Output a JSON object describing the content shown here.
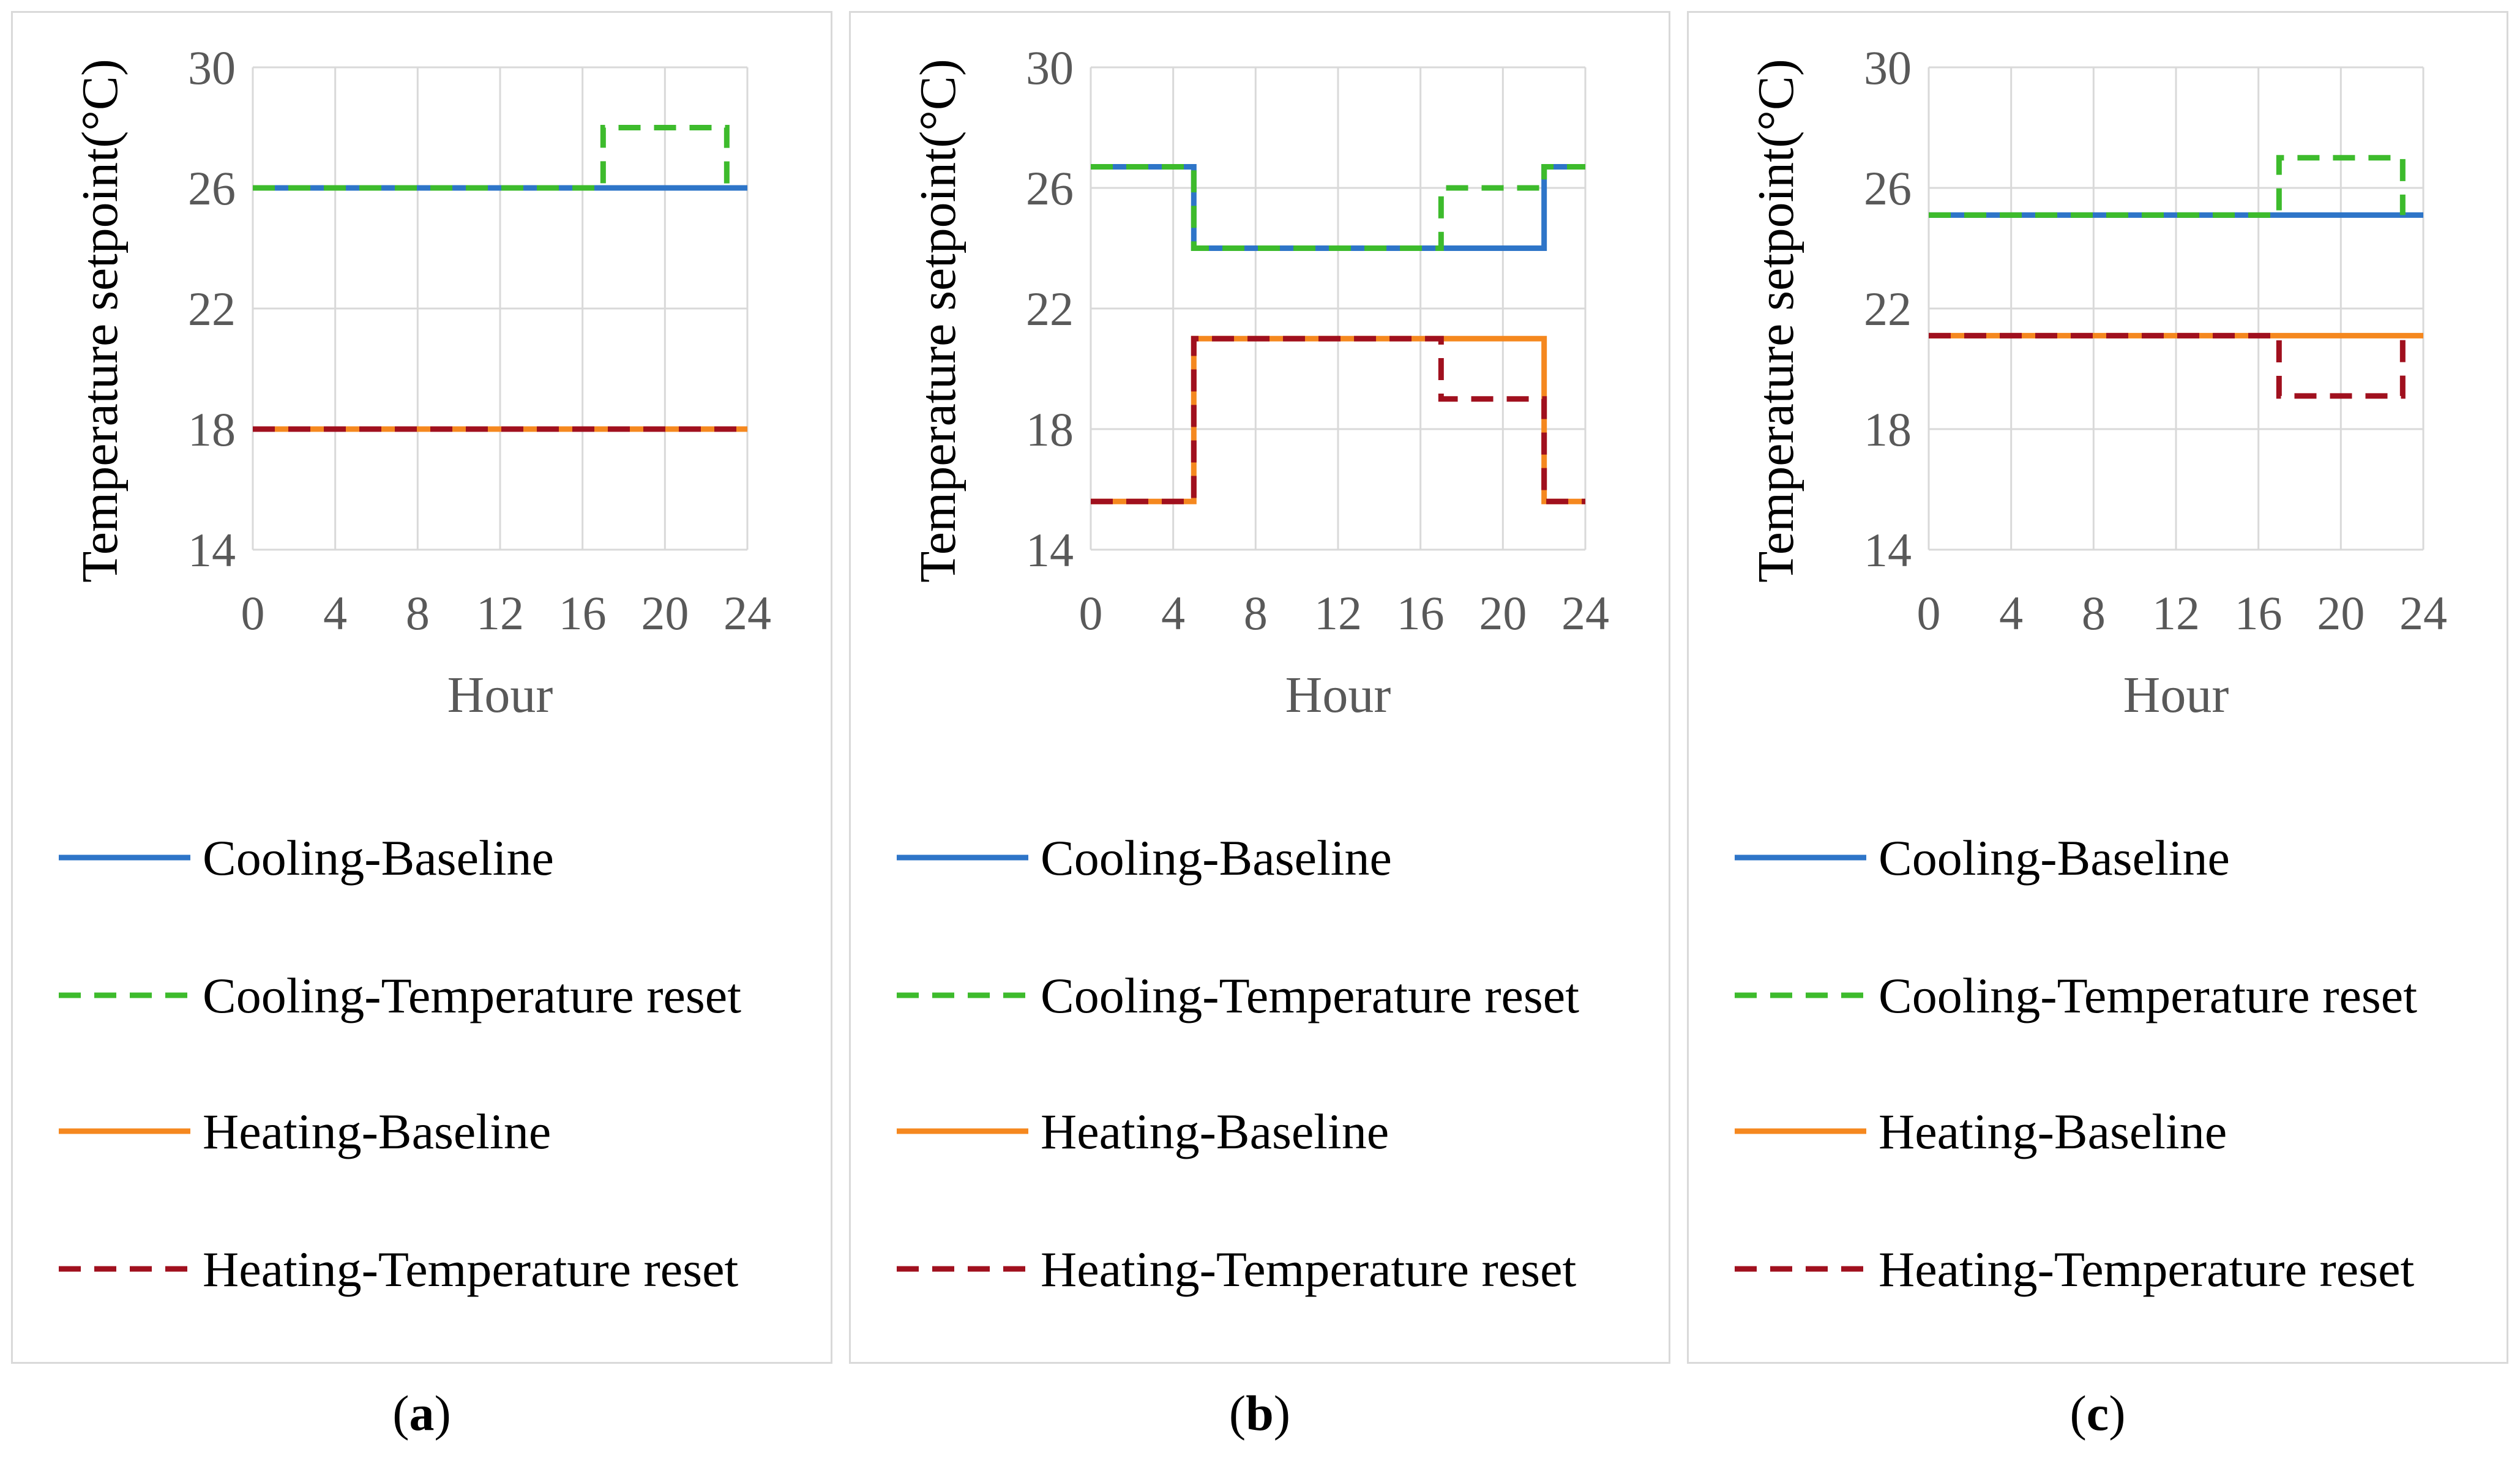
{
  "legend_labels": {
    "cooling_baseline": "Cooling-Baseline",
    "cooling_reset": "Cooling-Temperature reset",
    "heating_baseline": "Heating-Baseline",
    "heating_reset": "Heating-Temperature reset"
  },
  "colors": {
    "cooling_baseline": "#2e75c8",
    "cooling_reset": "#3dbb2c",
    "heating_baseline": "#f5881f",
    "heating_reset": "#a0101e",
    "grid": "#d9d9d9",
    "text": "#595959"
  },
  "chart_data": [
    {
      "type": "line",
      "panel_label": "a",
      "xlabel": "Hour",
      "ylabel": "Temperature setpoint(°C)",
      "xlim": [
        0,
        24
      ],
      "ylim": [
        14,
        30
      ],
      "xticks": [
        0,
        4,
        8,
        12,
        16,
        20,
        24
      ],
      "yticks": [
        14,
        18,
        22,
        26,
        30
      ],
      "series": [
        {
          "name": "Heating-Baseline",
          "key": "heating_baseline",
          "style": "solid",
          "points": [
            [
              0,
              18
            ],
            [
              24,
              18
            ]
          ]
        },
        {
          "name": "Heating-Temperature reset",
          "key": "heating_reset",
          "style": "dashed",
          "points": [
            [
              0,
              18
            ],
            [
              24,
              18
            ]
          ]
        },
        {
          "name": "Cooling-Baseline",
          "key": "cooling_baseline",
          "style": "solid",
          "points": [
            [
              0,
              26
            ],
            [
              24,
              26
            ]
          ]
        },
        {
          "name": "Cooling-Temperature reset",
          "key": "cooling_reset",
          "style": "dashed",
          "points": [
            [
              0,
              26
            ],
            [
              17,
              26
            ],
            [
              17,
              28
            ],
            [
              23,
              28
            ],
            [
              23,
              26
            ]
          ]
        }
      ]
    },
    {
      "type": "line",
      "panel_label": "b",
      "xlabel": "Hour",
      "ylabel": "Temperature setpoint(°C)",
      "xlim": [
        0,
        24
      ],
      "ylim": [
        14,
        30
      ],
      "xticks": [
        0,
        4,
        8,
        12,
        16,
        20,
        24
      ],
      "yticks": [
        14,
        18,
        22,
        26,
        30
      ],
      "series": [
        {
          "name": "Heating-Baseline",
          "key": "heating_baseline",
          "style": "solid",
          "points": [
            [
              0,
              15.6
            ],
            [
              5,
              15.6
            ],
            [
              5,
              21
            ],
            [
              22,
              21
            ],
            [
              22,
              15.6
            ],
            [
              24,
              15.6
            ]
          ]
        },
        {
          "name": "Heating-Temperature reset",
          "key": "heating_reset",
          "style": "dashed",
          "points": [
            [
              0,
              15.6
            ],
            [
              5,
              15.6
            ],
            [
              5,
              21
            ],
            [
              17,
              21
            ],
            [
              17,
              19
            ],
            [
              22,
              19
            ],
            [
              22,
              15.6
            ],
            [
              24,
              15.6
            ]
          ]
        },
        {
          "name": "Cooling-Baseline",
          "key": "cooling_baseline",
          "style": "solid",
          "points": [
            [
              0,
              26.7
            ],
            [
              5,
              26.7
            ],
            [
              5,
              24
            ],
            [
              22,
              24
            ],
            [
              22,
              26.7
            ],
            [
              24,
              26.7
            ]
          ]
        },
        {
          "name": "Cooling-Temperature reset",
          "key": "cooling_reset",
          "style": "dashed",
          "points": [
            [
              0,
              26.7
            ],
            [
              5,
              26.7
            ],
            [
              5,
              24
            ],
            [
              17,
              24
            ],
            [
              17,
              26
            ],
            [
              22,
              26
            ],
            [
              22,
              26.7
            ],
            [
              24,
              26.7
            ]
          ]
        }
      ]
    },
    {
      "type": "line",
      "panel_label": "c",
      "xlabel": "Hour",
      "ylabel": "Temperature setpoint(°C)",
      "xlim": [
        0,
        24
      ],
      "ylim": [
        14,
        30
      ],
      "xticks": [
        0,
        4,
        8,
        12,
        16,
        20,
        24
      ],
      "yticks": [
        14,
        18,
        22,
        26,
        30
      ],
      "series": [
        {
          "name": "Heating-Baseline",
          "key": "heating_baseline",
          "style": "solid",
          "points": [
            [
              0,
              21.1
            ],
            [
              24,
              21.1
            ]
          ]
        },
        {
          "name": "Heating-Temperature reset",
          "key": "heating_reset",
          "style": "dashed",
          "points": [
            [
              0,
              21.1
            ],
            [
              17,
              21.1
            ],
            [
              17,
              19.1
            ],
            [
              23,
              19.1
            ],
            [
              23,
              21.1
            ]
          ]
        },
        {
          "name": "Cooling-Baseline",
          "key": "cooling_baseline",
          "style": "solid",
          "points": [
            [
              0,
              25.1
            ],
            [
              24,
              25.1
            ]
          ]
        },
        {
          "name": "Cooling-Temperature reset",
          "key": "cooling_reset",
          "style": "dashed",
          "points": [
            [
              0,
              25.1
            ],
            [
              17,
              25.1
            ],
            [
              17,
              27
            ],
            [
              23,
              27
            ],
            [
              23,
              25.1
            ]
          ]
        }
      ]
    }
  ]
}
